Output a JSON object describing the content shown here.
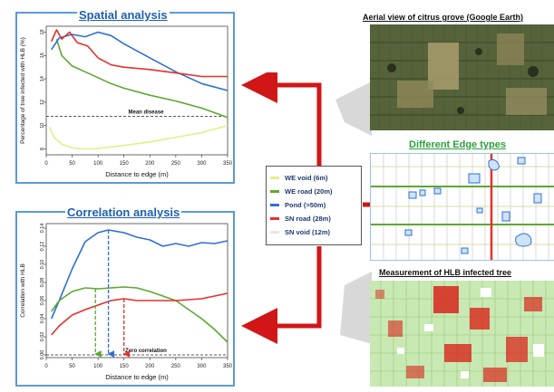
{
  "spatial": {
    "title": "Spatial analysis",
    "ylabel": "Percentage of tree infected with HLB (%)",
    "xlabel": "Distance to edge (m)",
    "annotation": "Mean disease"
  },
  "correlation": {
    "title": "Correlation analysis",
    "ylabel": "Correlation with HLB",
    "xlabel": "Distance to edge (m)",
    "annotation": "Zero correlation"
  },
  "aerial": {
    "title": "Aerial view of citrus grove (Google Earth)"
  },
  "edges": {
    "title": "Different Edge types"
  },
  "measurement": {
    "title": "Measurement of HLB infected tree"
  },
  "legend": {
    "items": [
      {
        "label": "WE void (6m)",
        "color": "#e3ee8a"
      },
      {
        "label": "WE road (20m)",
        "color": "#5ea832"
      },
      {
        "label": "Pond (>50m)",
        "color": "#2f6fd6"
      },
      {
        "label": "SN road (28m)",
        "color": "#e3322a"
      },
      {
        "label": "SN void (12m)",
        "color": "#e6e6e6"
      }
    ]
  },
  "colors": {
    "panel_border": "#5b9bd5",
    "title_blue": "#1f5fb4",
    "title_green": "#2e9e3e",
    "arrow_red": "#d01616"
  },
  "chart_data": [
    {
      "type": "line",
      "title": "Spatial analysis",
      "xlabel": "Distance to edge (m)",
      "ylabel": "Percentage of tree infected with HLB (%)",
      "xlim": [
        0,
        350
      ],
      "ylim": [
        7.5,
        18.5
      ],
      "xticks": [
        0,
        50,
        100,
        150,
        200,
        250,
        300,
        350
      ],
      "yticks": [
        8,
        10,
        12,
        14,
        16,
        18
      ],
      "reference_line": {
        "y": 10.8,
        "label": "Mean disease"
      },
      "series": [
        {
          "name": "WE void (6m)",
          "color": "#e3ee8a",
          "x": [
            6,
            15,
            30,
            50,
            70,
            90,
            110,
            130,
            150,
            200,
            250,
            300,
            350
          ],
          "y": [
            9.9,
            9.0,
            8.4,
            8.1,
            8.0,
            8.0,
            8.1,
            8.2,
            8.3,
            8.6,
            9.0,
            9.4,
            10.0
          ]
        },
        {
          "name": "WE road (20m)",
          "color": "#5ea832",
          "x": [
            20,
            30,
            50,
            75,
            100,
            125,
            150,
            200,
            250,
            300,
            350
          ],
          "y": [
            17.4,
            16.0,
            15.1,
            14.6,
            14.1,
            13.6,
            13.2,
            12.6,
            12.1,
            11.5,
            10.7
          ]
        },
        {
          "name": "Pond (>50m)",
          "color": "#2f6fd6",
          "x": [
            10,
            25,
            50,
            75,
            100,
            125,
            150,
            200,
            250,
            300,
            350
          ],
          "y": [
            16.5,
            17.5,
            17.8,
            17.6,
            18.0,
            17.7,
            17.0,
            15.8,
            14.6,
            13.6,
            13.0
          ]
        },
        {
          "name": "SN road (28m)",
          "color": "#e3322a",
          "x": [
            10,
            20,
            30,
            45,
            60,
            80,
            100,
            125,
            150,
            200,
            250,
            300,
            350
          ],
          "y": [
            17.2,
            18.2,
            17.4,
            18.0,
            17.1,
            16.8,
            15.8,
            15.2,
            15.0,
            14.8,
            14.5,
            14.2,
            14.2
          ]
        }
      ]
    },
    {
      "type": "line",
      "title": "Correlation analysis",
      "xlabel": "Distance to edge (m)",
      "ylabel": "Correlation with HLB",
      "xlim": [
        0,
        350
      ],
      "ylim": [
        -0.003,
        0.145
      ],
      "xticks": [
        0,
        50,
        100,
        150,
        200,
        250,
        300,
        350
      ],
      "yticks": [
        0.0,
        0.02,
        0.04,
        0.06,
        0.08,
        0.1,
        0.12,
        0.14
      ],
      "reference_line": {
        "y": 0.0,
        "label": "Zero correlation"
      },
      "series": [
        {
          "name": "Pond (>50m)",
          "color": "#2f6fd6",
          "x": [
            10,
            25,
            50,
            75,
            100,
            120,
            150,
            175,
            200,
            225,
            250,
            275,
            300,
            325,
            350
          ],
          "y": [
            0.04,
            0.06,
            0.095,
            0.125,
            0.135,
            0.138,
            0.135,
            0.13,
            0.127,
            0.12,
            0.123,
            0.12,
            0.124,
            0.123,
            0.126
          ]
        },
        {
          "name": "WE road (20m)",
          "color": "#5ea832",
          "x": [
            10,
            25,
            50,
            75,
            100,
            125,
            150,
            175,
            200,
            225,
            250,
            275,
            300,
            325,
            350
          ],
          "y": [
            0.048,
            0.06,
            0.07,
            0.074,
            0.073,
            0.074,
            0.075,
            0.074,
            0.07,
            0.065,
            0.06,
            0.05,
            0.04,
            0.028,
            0.014
          ]
        },
        {
          "name": "SN road (28m)",
          "color": "#e3322a",
          "x": [
            10,
            25,
            50,
            75,
            100,
            125,
            150,
            175,
            200,
            225,
            250,
            275,
            300,
            325,
            350
          ],
          "y": [
            0.022,
            0.032,
            0.044,
            0.05,
            0.055,
            0.06,
            0.062,
            0.06,
            0.06,
            0.06,
            0.06,
            0.061,
            0.062,
            0.065,
            0.068
          ]
        }
      ],
      "peak_markers": [
        {
          "series": "WE road (20m)",
          "x": 95,
          "y": 0.073
        },
        {
          "series": "Pond (>50m)",
          "x": 120,
          "y": 0.138
        },
        {
          "series": "SN road (28m)",
          "x": 150,
          "y": 0.062
        }
      ]
    }
  ]
}
